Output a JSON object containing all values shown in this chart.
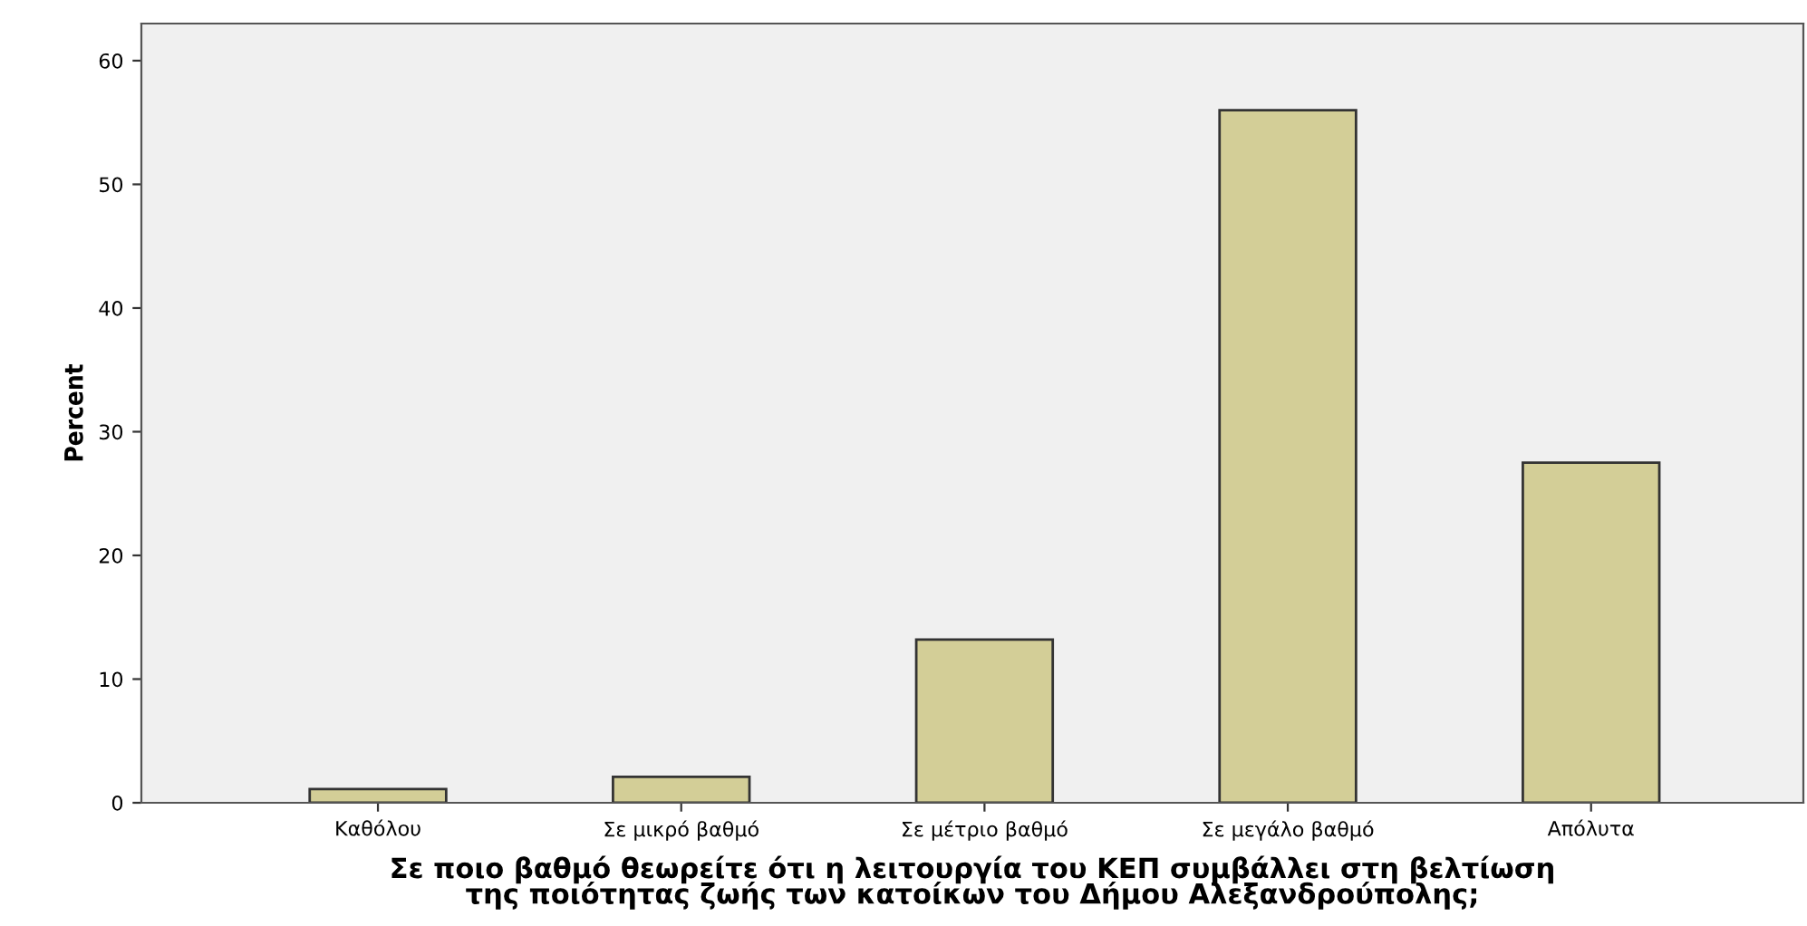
{
  "chart_data": {
    "type": "bar",
    "xlabel": "Σε ποιο βαθμό θεωρείτε ότι η λειτουργία του ΚΕΠ συμβάλλει στη βελτίωση\nτης ποιότητας ζωής των κατοίκων του Δήμου Αλεξανδρούπολης;",
    "ylabel": "Percent",
    "categories": [
      "Καθόλου",
      "Σε μικρό βαθμό",
      "Σε μέτριο βαθμό",
      "Σε μεγάλο βαθμό",
      "Απόλυτα"
    ],
    "values": [
      1.1,
      2.1,
      13.2,
      56.0,
      27.5
    ],
    "color": "#d3ce97",
    "ylim": [
      0,
      63
    ],
    "yticks": [
      0,
      10,
      20,
      30,
      40,
      50,
      60
    ],
    "grid": false,
    "legend": false
  }
}
